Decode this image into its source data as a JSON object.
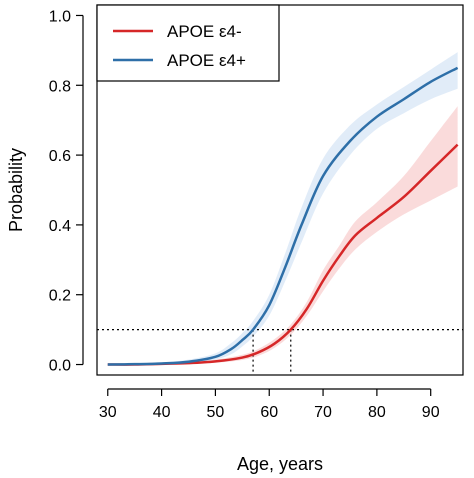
{
  "chart_data": {
    "type": "line",
    "xlabel": "Age, years",
    "ylabel": "Probability",
    "xlim": [
      28,
      96
    ],
    "ylim": [
      -0.03,
      1.03
    ],
    "x_ticks": [
      30,
      40,
      50,
      60,
      70,
      80,
      90
    ],
    "y_ticks": [
      0.0,
      0.2,
      0.4,
      0.6,
      0.8,
      1.0
    ],
    "y_tick_labels": [
      "0.0",
      "0.2",
      "0.4",
      "0.6",
      "0.8",
      "1.0"
    ],
    "threshold": 0.1,
    "threshold_ages": [
      57,
      64
    ],
    "legend_position": "top-left",
    "series": [
      {
        "name": "APOE ε4-",
        "color": "#d62728",
        "band_color": "#f9d5d5",
        "x": [
          30,
          35,
          40,
          45,
          50,
          55,
          58,
          61,
          64,
          67,
          70,
          73,
          76,
          80,
          85,
          90,
          95
        ],
        "y": [
          0.0,
          0.0,
          0.002,
          0.004,
          0.009,
          0.02,
          0.035,
          0.06,
          0.1,
          0.16,
          0.24,
          0.31,
          0.37,
          0.42,
          0.48,
          0.555,
          0.63
        ],
        "lower": [
          0.0,
          0.0,
          0.001,
          0.002,
          0.005,
          0.013,
          0.025,
          0.048,
          0.085,
          0.14,
          0.21,
          0.275,
          0.33,
          0.38,
          0.43,
          0.47,
          0.51
        ],
        "upper": [
          0.0,
          0.0,
          0.003,
          0.007,
          0.014,
          0.028,
          0.045,
          0.073,
          0.115,
          0.18,
          0.27,
          0.34,
          0.41,
          0.465,
          0.54,
          0.64,
          0.74
        ]
      },
      {
        "name": "APOE ε4+",
        "color": "#2e6fa8",
        "band_color": "#dce9f7",
        "x": [
          30,
          35,
          40,
          45,
          50,
          53,
          55,
          57,
          60,
          63,
          66,
          70,
          75,
          80,
          85,
          90,
          95
        ],
        "y": [
          0.0,
          0.001,
          0.003,
          0.008,
          0.022,
          0.045,
          0.07,
          0.1,
          0.17,
          0.28,
          0.4,
          0.54,
          0.64,
          0.71,
          0.76,
          0.81,
          0.85
        ],
        "lower": [
          0.0,
          0.0,
          0.001,
          0.004,
          0.014,
          0.03,
          0.052,
          0.08,
          0.14,
          0.24,
          0.35,
          0.49,
          0.6,
          0.675,
          0.72,
          0.76,
          0.79
        ],
        "upper": [
          0.001,
          0.002,
          0.006,
          0.014,
          0.032,
          0.062,
          0.09,
          0.125,
          0.2,
          0.32,
          0.45,
          0.59,
          0.685,
          0.745,
          0.795,
          0.845,
          0.895
        ]
      }
    ]
  }
}
